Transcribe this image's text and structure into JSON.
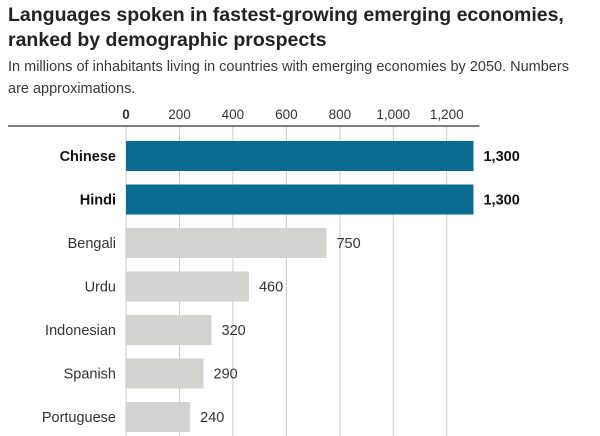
{
  "title": "Languages spoken in fastest-growing emerging economies, ranked by demographic prospects",
  "subtitle": "In millions of inhabitants living in countries with emerging economies by 2050. Numbers are approximations.",
  "colors": {
    "highlight": "#0a6b94",
    "muted": "#d3d3d0",
    "grid": "#c9c9c9",
    "baseline": "#333333"
  },
  "chart_data": {
    "type": "bar",
    "orientation": "horizontal",
    "categories": [
      "Chinese",
      "Hindi",
      "Bengali",
      "Urdu",
      "Indonesian",
      "Spanish",
      "Portuguese"
    ],
    "values": [
      1300,
      1300,
      750,
      460,
      320,
      290,
      240
    ],
    "value_labels": [
      "1,300",
      "1,300",
      "750",
      "460",
      "320",
      "290",
      "240"
    ],
    "highlighted": [
      true,
      true,
      false,
      false,
      false,
      false,
      false
    ],
    "xticks": [
      0,
      200,
      400,
      600,
      800,
      1000,
      1200
    ],
    "xtick_labels": [
      "0",
      "200",
      "400",
      "600",
      "800",
      "1,000",
      "1,200"
    ],
    "xlim": [
      0,
      1300
    ],
    "grid": true
  }
}
